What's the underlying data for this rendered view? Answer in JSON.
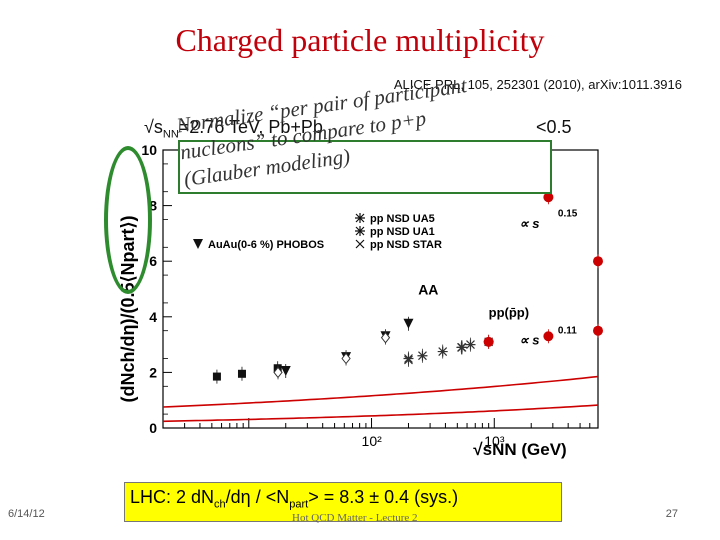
{
  "slide": {
    "title": "Charged particle multiplicity",
    "reference": "ALICE PRL, 105, 252301 (2010), arXiv:1011.3916",
    "energy_prefix": "√s",
    "energy_sub": "NN",
    "energy_suffix": "=2.76 TeV, Pb+Pb",
    "eta_fragment": "<0.5",
    "callout": {
      "line1": "Normalize “per pair of participant",
      "line2": "nucleons” to compare to p+p",
      "line3": "(Glauber modeling)"
    },
    "result": {
      "prefix": "LHC: 2 dN",
      "sub1": "ch",
      "mid": "/dη / <N",
      "sub2": "part",
      "suffix": "> = 8.3 ± 0.4 (sys.)"
    },
    "footer": {
      "date": "6/14/12",
      "center": "Hot QCD Matter - Lecture 2",
      "page": "27"
    }
  },
  "colors": {
    "title": "#c0000a",
    "callout_border": "#2e7d2e",
    "ellipse": "#2e8b2e",
    "result_bg": "#ffff00",
    "alice_point": "#cc0000",
    "fit_curve": "#cc0000"
  },
  "chart_data": {
    "type": "scatter",
    "xlabel": "√sNN (GeV)",
    "ylabel": "(dNch/dη)/(0.5⟨Npart⟩)",
    "x_scale": "log",
    "xlim": [
      2,
      7000
    ],
    "ylim": [
      0,
      10
    ],
    "x_ticks": [
      {
        "value": 100,
        "label": "10²"
      },
      {
        "value": 1000,
        "label": "10³"
      }
    ],
    "y_ticks": [
      0,
      2,
      4,
      6,
      8,
      10
    ],
    "legend_visible": [
      {
        "label": "pp NSD UA5",
        "marker": "star"
      },
      {
        "label": "pp NSD UA1",
        "marker": "star"
      },
      {
        "label": "AuAu(0-6 %) PHOBOS",
        "marker": "triangle-down"
      },
      {
        "label": "pp NSD STAR",
        "marker": "x"
      }
    ],
    "annotations": {
      "aa_label": "AA",
      "pp_label": "pp(p̄p)",
      "aa_power": "0.15",
      "pp_power": "0.11"
    },
    "series": [
      {
        "name": "AuAu(0-6 %) PHOBOS",
        "marker": "triangle-down",
        "color": "#111111",
        "x": [
          20,
          62,
          130,
          200
        ],
        "y": [
          2.05,
          2.55,
          3.3,
          3.75
        ]
      },
      {
        "name": "pp NSD UA5",
        "marker": "star",
        "color": "#333333",
        "x": [
          200,
          546,
          900
        ],
        "y": [
          2.5,
          2.9,
          3.1
        ]
      },
      {
        "name": "pp NSD UA1",
        "marker": "star",
        "color": "#333333",
        "x": [
          260,
          380,
          540,
          640
        ],
        "y": [
          2.6,
          2.75,
          2.9,
          3.0
        ]
      },
      {
        "name": "pp NSD STAR",
        "marker": "x",
        "color": "#333333",
        "x": [
          200
        ],
        "y": [
          2.45
        ]
      },
      {
        "marker": "square",
        "color": "#111111",
        "x": [
          5.5,
          8.8,
          17.2
        ],
        "y": [
          1.85,
          1.95,
          2.15
        ]
      },
      {
        "marker": "diamond-open",
        "color": "#333333",
        "x": [
          17.3,
          62,
          130
        ],
        "y": [
          2.0,
          2.5,
          3.25
        ]
      },
      {
        "marker": "circle",
        "color": "#cc0000",
        "x": [
          2760,
          2760,
          900,
          7000,
          7000
        ],
        "y": [
          8.3,
          3.3,
          3.1,
          3.5,
          6.0
        ]
      }
    ],
    "fits": [
      {
        "name": "AA",
        "form": "a*s^0.15",
        "a": 0.2185,
        "xrange": [
          2,
          7000
        ]
      },
      {
        "name": "pp",
        "form": "a*s^0.11",
        "a": 0.6985,
        "xrange": [
          2,
          7000
        ]
      }
    ]
  }
}
